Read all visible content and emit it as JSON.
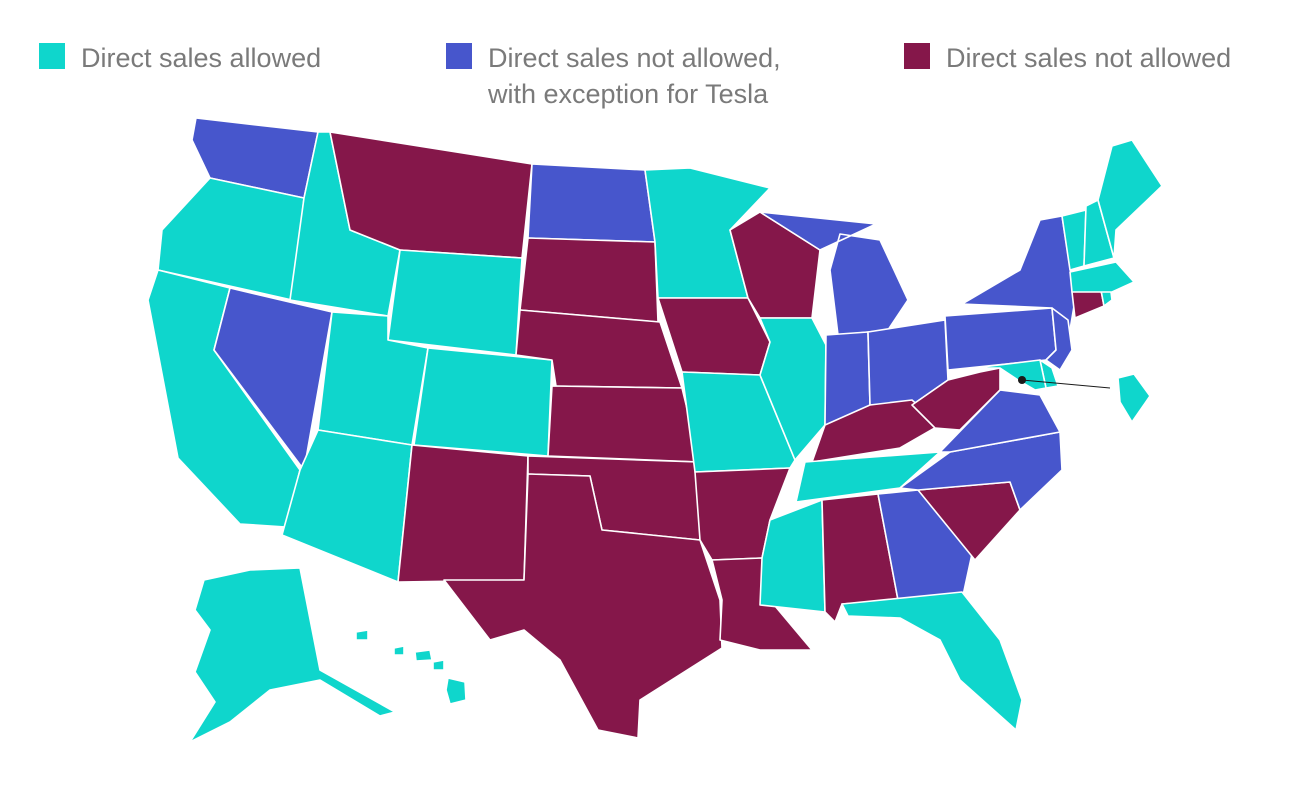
{
  "colors": {
    "allowed": "#0fd6cc",
    "tesla_exception": "#4756cc",
    "not_allowed": "#85174a"
  },
  "legend": [
    {
      "category": "allowed",
      "lines": [
        "Direct sales allowed"
      ]
    },
    {
      "category": "tesla_exception",
      "lines": [
        "Direct sales not allowed,",
        "with exception for Tesla"
      ]
    },
    {
      "category": "not_allowed",
      "lines": [
        "Direct sales not allowed"
      ]
    }
  ],
  "states": {
    "WA": "tesla_exception",
    "OR": "allowed",
    "CA": "allowed",
    "NV": "tesla_exception",
    "ID": "allowed",
    "MT": "not_allowed",
    "WY": "allowed",
    "UT": "allowed",
    "AZ": "allowed",
    "CO": "allowed",
    "NM": "not_allowed",
    "ND": "tesla_exception",
    "SD": "not_allowed",
    "NE": "not_allowed",
    "KS": "not_allowed",
    "OK": "not_allowed",
    "TX": "not_allowed",
    "MN": "allowed",
    "IA": "not_allowed",
    "MO": "allowed",
    "AR": "not_allowed",
    "LA": "not_allowed",
    "WI": "not_allowed",
    "IL": "allowed",
    "MI": "tesla_exception",
    "IN": "tesla_exception",
    "OH": "tesla_exception",
    "KY": "not_allowed",
    "TN": "allowed",
    "MS": "allowed",
    "AL": "not_allowed",
    "GA": "tesla_exception",
    "FL": "allowed",
    "SC": "not_allowed",
    "NC": "tesla_exception",
    "VA": "tesla_exception",
    "WV": "not_allowed",
    "PA": "tesla_exception",
    "NY": "tesla_exception",
    "NJ": "tesla_exception",
    "DE": "allowed",
    "MD": "allowed",
    "DC": "allowed",
    "CT": "not_allowed",
    "RI": "allowed",
    "MA": "allowed",
    "VT": "allowed",
    "NH": "allowed",
    "ME": "allowed",
    "AK": "allowed",
    "HI": "allowed"
  }
}
